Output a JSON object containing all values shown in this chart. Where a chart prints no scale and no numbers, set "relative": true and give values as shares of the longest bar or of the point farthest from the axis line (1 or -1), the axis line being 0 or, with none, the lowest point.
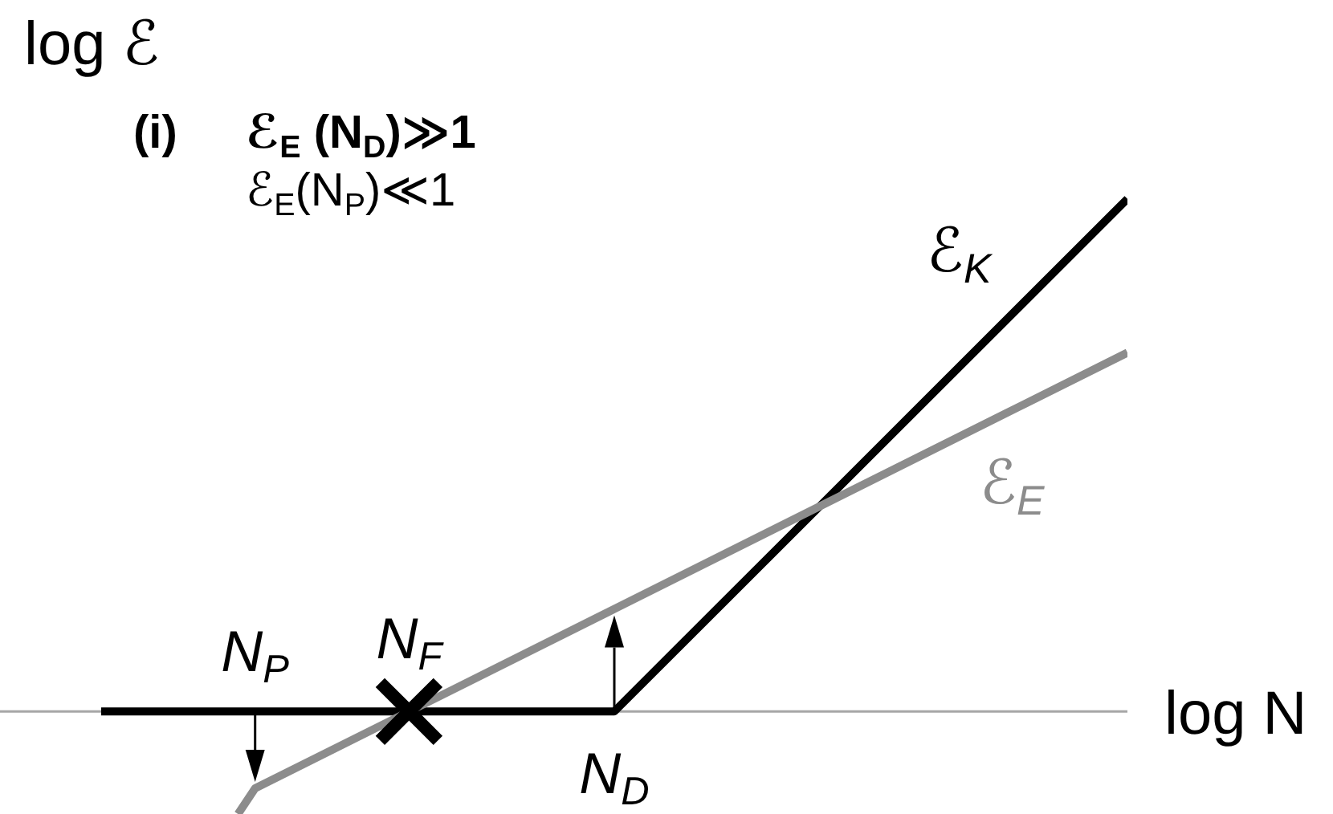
{
  "chart_data": {
    "type": "line",
    "relative": true,
    "tick_labels": "x",
    "xlabel": "log N",
    "ylabel": "log ℰ",
    "categories": [
      null,
      null,
      null,
      null,
      null,
      null,
      null,
      null,
      null,
      "N$_{P}$",
      null,
      null,
      null,
      null,
      null,
      null,
      null,
      null,
      "N$_{F}$",
      null,
      null,
      null,
      null,
      null,
      null,
      null,
      null,
      null,
      null,
      null,
      "N$_{D}$",
      null,
      null,
      null,
      null,
      null,
      null,
      null,
      null,
      null,
      null,
      null,
      null,
      null,
      null,
      null,
      null,
      null,
      null,
      null,
      null,
      null,
      null,
      null,
      null,
      null,
      null,
      null,
      null,
      null,
      null
    ],
    "series": [
      {
        "name": "ℰ$_{K}$",
        "color": "#000000",
        "values": [
          0,
          null,
          null,
          null,
          null,
          null,
          null,
          null,
          null,
          null,
          null,
          null,
          null,
          null,
          null,
          null,
          null,
          null,
          null,
          null,
          null,
          null,
          null,
          null,
          null,
          null,
          null,
          null,
          null,
          null,
          0,
          null,
          null,
          null,
          null,
          null,
          null,
          null,
          null,
          null,
          null,
          null,
          null,
          null,
          null,
          null,
          null,
          null,
          null,
          null,
          null,
          null,
          null,
          null,
          null,
          null,
          null,
          null,
          null,
          null,
          1
        ]
      },
      {
        "name": "ℰ$_{E}$",
        "color": "#8c8c8c",
        "values": [
          null,
          null,
          null,
          null,
          null,
          null,
          null,
          null,
          -0.2,
          -0.15,
          null,
          null,
          null,
          null,
          null,
          null,
          null,
          null,
          null,
          null,
          null,
          null,
          null,
          null,
          null,
          null,
          null,
          null,
          null,
          null,
          null,
          null,
          null,
          null,
          null,
          null,
          null,
          null,
          null,
          null,
          null,
          null,
          null,
          null,
          null,
          null,
          null,
          null,
          null,
          null,
          null,
          null,
          null,
          null,
          null,
          null,
          null,
          null,
          null,
          null,
          0.7
        ]
      },
      {
        "type": "scatter",
        "color": "#000000",
        "marker": "cross",
        "values": [
          null,
          null,
          null,
          null,
          null,
          null,
          null,
          null,
          null,
          null,
          null,
          null,
          null,
          null,
          null,
          null,
          null,
          null,
          0,
          null,
          null,
          null,
          null,
          null,
          null,
          null,
          null,
          null,
          null,
          null,
          null,
          null,
          null,
          null,
          null,
          null,
          null,
          null,
          null,
          null,
          null,
          null,
          null,
          null,
          null,
          null,
          null,
          null,
          null,
          null,
          null,
          null,
          null,
          null,
          null,
          null,
          null,
          null,
          null,
          null,
          null
        ]
      }
    ],
    "annotations": [
      "(i)",
      "ℰ$_{E}$ (N$_{D}$)≫1",
      "ℰ$_{E}$(N$_{P}$)≪1"
    ]
  }
}
